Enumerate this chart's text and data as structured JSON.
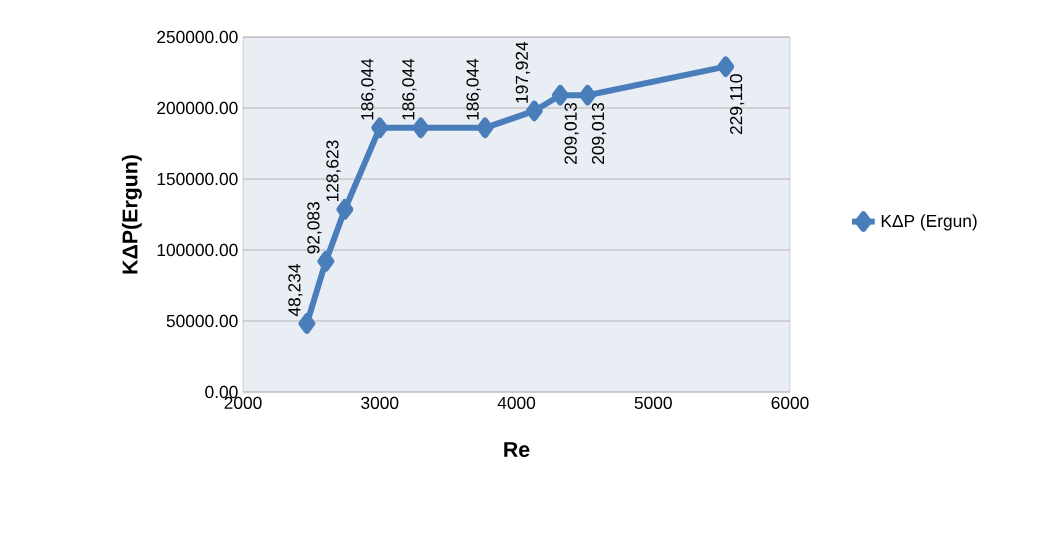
{
  "chart_data": {
    "type": "line",
    "xlabel": "Re",
    "ylabel": "KΔP(Ergun)",
    "x": [
      2467,
      2606,
      2745,
      3000,
      3300,
      3770,
      4130,
      4320,
      4520,
      5530
    ],
    "series": [
      {
        "name": "KΔP (Ergun)",
        "color": "#4a7ebb",
        "values": [
          48234,
          92083,
          128623,
          186044,
          186044,
          186044,
          197924,
          209013,
          209013,
          229110
        ],
        "value_labels": [
          "48,234",
          "92,083",
          "128,623",
          "186,044",
          "186,044",
          "186,044",
          "197,924",
          "209,013",
          "209,013",
          "229,110"
        ]
      }
    ],
    "xlim": [
      2000,
      6000
    ],
    "xticks": [
      2000,
      3000,
      4000,
      5000,
      6000
    ],
    "ylim": [
      0,
      250000
    ],
    "yticks": [
      {
        "value": 0,
        "label": "0.00"
      },
      {
        "value": 50000,
        "label": "50000.00"
      },
      {
        "value": 100000,
        "label": "100000.00"
      },
      {
        "value": 150000,
        "label": "150000.00"
      },
      {
        "value": 200000,
        "label": "200000.00"
      },
      {
        "value": 250000,
        "label": "250000.00"
      }
    ],
    "grid": "y",
    "legend": "right",
    "marker": "diamond",
    "line_style": "solid"
  }
}
